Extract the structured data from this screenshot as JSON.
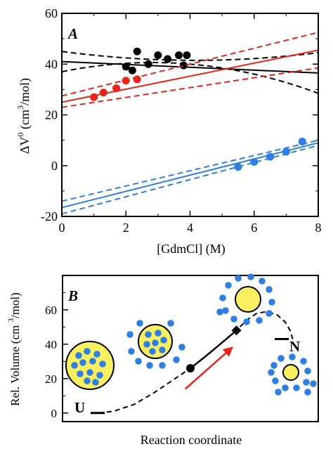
{
  "colors": {
    "black": "#000000",
    "red": "#e8251a",
    "blue": "#2f7fe0",
    "yellow": "#f8f060",
    "arrow": "#e8251a"
  },
  "chart_data": [
    {
      "type": "scatter",
      "panel_label": "A",
      "xlabel": "[GdmCl] (M)",
      "ylabel": "ΔV⁰ (cm³/mol)",
      "ylabel_main": "ΔV",
      "ylabel_sup": "0",
      "ylabel_rest": " (cm",
      "ylabel_sup2": "3",
      "ylabel_end": "/mol)",
      "xlim": [
        0,
        8
      ],
      "ylim": [
        -20,
        60
      ],
      "xticks": [
        0,
        2,
        4,
        6,
        8
      ],
      "yticks": [
        -20,
        0,
        20,
        40,
        60
      ],
      "series": [
        {
          "color": "black",
          "points": [
            [
              2.0,
              39
            ],
            [
              2.2,
              37.5
            ],
            [
              2.35,
              45
            ],
            [
              2.7,
              40
            ],
            [
              3.0,
              43.5
            ],
            [
              3.3,
              42
            ],
            [
              3.65,
              43.5
            ],
            [
              3.8,
              39.5
            ],
            [
              3.9,
              43.5
            ]
          ],
          "fit": {
            "y0": 41.0,
            "y8": 36.5
          },
          "ci_upper": {
            "y0": 45.0,
            "y4": 41.5,
            "y8": 44.5
          },
          "ci_lower": {
            "y0": 37.0,
            "y4": 40.0,
            "y8": 28.5
          }
        },
        {
          "color": "red",
          "points": [
            [
              1.0,
              27
            ],
            [
              1.3,
              28.8
            ],
            [
              1.7,
              30.5
            ],
            [
              2.0,
              33.5
            ],
            [
              2.35,
              34
            ]
          ],
          "fit": {
            "y0": 25.0,
            "y8": 45.5
          },
          "ci_upper": {
            "y0": 27.5,
            "y8": 52.5
          },
          "ci_lower": {
            "y0": 23.0,
            "y8": 38.5
          }
        },
        {
          "color": "blue",
          "points": [
            [
              5.5,
              -0.5
            ],
            [
              6.0,
              1.5
            ],
            [
              6.5,
              3.5
            ],
            [
              7.0,
              5.5
            ],
            [
              7.5,
              9.5
            ]
          ],
          "fit": {
            "y0": -16.5,
            "y8": 9.0
          },
          "ci_upper": {
            "y0": -14.0,
            "y8": 10.0
          },
          "ci_lower": {
            "y0": -19.0,
            "y8": 8.0
          }
        }
      ]
    },
    {
      "type": "line",
      "panel_label": "B",
      "xlabel": "Reaction coordinate",
      "ylabel": "Rel. Volume (cm 3/mol)",
      "ylabel_main": "Rel. Volume (cm ",
      "ylabel_sup": "3",
      "ylabel_end": "/mol)",
      "ylim": [
        -5,
        80
      ],
      "yticks": [
        0,
        20,
        40,
        60
      ],
      "state_labels": {
        "U": "U",
        "N": "N"
      },
      "profile": [
        [
          0.14,
          0.0
        ],
        [
          0.2,
          1.0
        ],
        [
          0.28,
          5.0
        ],
        [
          0.36,
          12.0
        ],
        [
          0.44,
          20.0
        ],
        [
          0.5,
          26.0
        ],
        [
          0.56,
          33.0
        ],
        [
          0.6,
          38.0
        ],
        [
          0.64,
          43.0
        ],
        [
          0.68,
          48.0
        ],
        [
          0.72,
          54.0
        ],
        [
          0.76,
          58.0
        ],
        [
          0.8,
          59.0
        ],
        [
          0.84,
          57.0
        ],
        [
          0.87,
          53.0
        ],
        [
          0.89,
          48.0
        ],
        [
          0.9,
          43.0
        ]
      ],
      "solid_segment": [
        0.5,
        0.68
      ],
      "markers": [
        {
          "shape": "circle",
          "x": 0.5,
          "y": 26
        },
        {
          "shape": "diamond",
          "x": 0.68,
          "y": 48
        }
      ]
    }
  ]
}
